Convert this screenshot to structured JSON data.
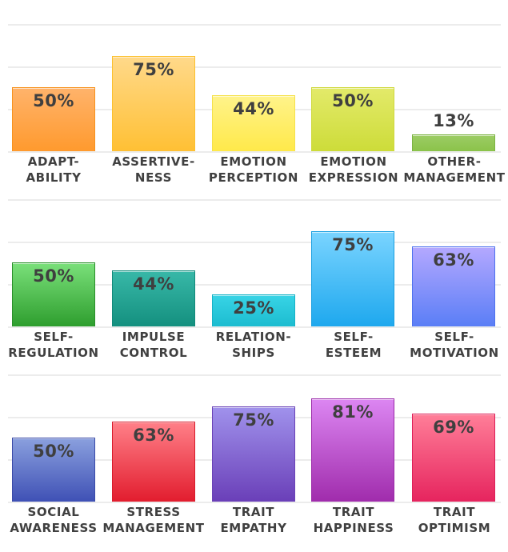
{
  "chart_data": [
    {
      "type": "bar",
      "title": "",
      "xlabel": "",
      "ylabel": "",
      "ylim": [
        0,
        100
      ],
      "grid": true,
      "categories": [
        "ADAPT-ABILITY",
        "ASSERTIVE-NESS",
        "EMOTION PERCEPTION",
        "EMOTION EXPRESSION",
        "OTHER-MANAGEMENT"
      ],
      "values": [
        50,
        75,
        44,
        50,
        13
      ],
      "value_labels": [
        "50%",
        "75%",
        "44%",
        "50%",
        "13%"
      ],
      "colors": [
        [
          "#ffb36b",
          "#ff9a2e"
        ],
        [
          "#ffd98a",
          "#ffc034"
        ],
        [
          "#fff38a",
          "#ffe94a"
        ],
        [
          "#e3ea6a",
          "#cddc39"
        ],
        [
          "#9ccc65",
          "#8bc34a"
        ]
      ],
      "border_colors": [
        "#f7921e",
        "#fbc02d",
        "#f5e14a",
        "#cfd83c",
        "#7cb342"
      ]
    },
    {
      "type": "bar",
      "title": "",
      "xlabel": "",
      "ylabel": "",
      "ylim": [
        0,
        100
      ],
      "grid": true,
      "categories": [
        "SELF-REGULATION",
        "IMPULSE CONTROL",
        "RELATION-SHIPS",
        "SELF-ESTEEM",
        "SELF-MOTIVATION"
      ],
      "values": [
        50,
        44,
        25,
        75,
        63
      ],
      "value_labels": [
        "50%",
        "44%",
        "25%",
        "75%",
        "63%"
      ],
      "colors": [
        [
          "#7ae07a",
          "#2e9e2e"
        ],
        [
          "#38b8a8",
          "#14907f"
        ],
        [
          "#38d4e6",
          "#1cbcd0"
        ],
        [
          "#7ad4ff",
          "#1ea8ee"
        ],
        [
          "#b4a8ff",
          "#5a7ef6"
        ]
      ],
      "border_colors": [
        "#2a8f2a",
        "#12897a",
        "#16b2c6",
        "#1a9fe0",
        "#4e72ee"
      ]
    },
    {
      "type": "bar",
      "title": "",
      "xlabel": "",
      "ylabel": "",
      "ylim": [
        0,
        100
      ],
      "grid": true,
      "categories": [
        "SOCIAL AWARENESS",
        "STRESS MANAGEMENT",
        "TRAIT EMPATHY",
        "TRAIT HAPPINESS",
        "TRAIT OPTIMISM"
      ],
      "values": [
        50,
        63,
        75,
        81,
        69
      ],
      "value_labels": [
        "50%",
        "63%",
        "75%",
        "81%",
        "69%"
      ],
      "colors": [
        [
          "#8aa0de",
          "#3f51b5"
        ],
        [
          "#ff8088",
          "#e21d2e"
        ],
        [
          "#a092ec",
          "#6a3fb8"
        ],
        [
          "#dc86f2",
          "#a02cac"
        ],
        [
          "#ff7e98",
          "#e6245e"
        ]
      ],
      "border_colors": [
        "#3a4aa8",
        "#d81b2b",
        "#6a42b6",
        "#9a2aa8",
        "#dd1f58"
      ]
    }
  ],
  "panels": [
    {
      "labels": [
        [
          "ADAPT-",
          "ABILITY"
        ],
        [
          "ASSERTIVE-",
          "NESS"
        ],
        [
          "EMOTION",
          "PERCEPTION"
        ],
        [
          "EMOTION",
          "EXPRESSION"
        ],
        [
          "OTHER-",
          "MANAGEMENT"
        ]
      ]
    },
    {
      "labels": [
        [
          "SELF-",
          "REGULATION"
        ],
        [
          "IMPULSE",
          "CONTROL"
        ],
        [
          "RELATION-",
          "SHIPS"
        ],
        [
          "SELF-",
          "ESTEEM"
        ],
        [
          "SELF-",
          "MOTIVATION"
        ]
      ]
    },
    {
      "labels": [
        [
          "SOCIAL",
          "AWARENESS"
        ],
        [
          "STRESS",
          "MANAGEMENT"
        ],
        [
          "TRAIT",
          "EMPATHY"
        ],
        [
          "TRAIT",
          "HAPPINESS"
        ],
        [
          "TRAIT",
          "OPTIMISM"
        ]
      ]
    }
  ]
}
